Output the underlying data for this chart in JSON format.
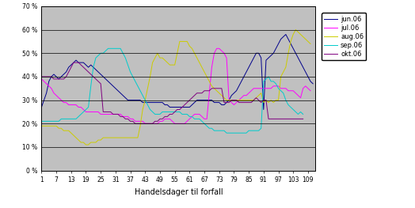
{
  "title": "",
  "xlabel": "Handelsdager til forfall",
  "ylabel": "",
  "xlim": [
    1,
    112
  ],
  "ylim": [
    0,
    70
  ],
  "xticks": [
    1,
    7,
    13,
    19,
    25,
    31,
    37,
    43,
    49,
    55,
    61,
    67,
    73,
    79,
    85,
    91,
    97,
    103,
    109
  ],
  "yticks": [
    0,
    10,
    20,
    30,
    40,
    50,
    60,
    70
  ],
  "fig_bg_color": "#ffffff",
  "plot_bg_color": "#c0c0c0",
  "legend_labels": [
    "jun.06",
    "jul.06",
    "aug.06",
    "sep.06",
    "okt.06"
  ],
  "line_colors": [
    "#00008B",
    "#FF00FF",
    "#CCCC00",
    "#00CCCC",
    "#800080"
  ],
  "jun06": [
    27,
    30,
    33,
    38,
    40,
    41,
    40,
    39,
    40,
    41,
    42,
    44,
    45,
    46,
    47,
    46,
    46,
    46,
    45,
    44,
    45,
    44,
    43,
    42,
    41,
    40,
    39,
    38,
    37,
    36,
    35,
    34,
    33,
    32,
    31,
    30,
    30,
    30,
    30,
    30,
    30,
    29,
    29,
    29,
    29,
    29,
    29,
    29,
    29,
    29,
    28,
    28,
    27,
    27,
    27,
    27,
    27,
    27,
    27,
    27,
    27,
    28,
    29,
    30,
    30,
    30,
    30,
    30,
    30,
    30,
    29,
    29,
    29,
    28,
    28,
    29,
    30,
    32,
    33,
    34,
    36,
    38,
    40,
    42,
    44,
    46,
    48,
    50,
    50,
    48,
    26,
    47,
    48,
    49,
    50,
    52,
    54,
    56,
    57,
    58,
    56,
    54,
    52,
    50,
    48,
    46,
    44,
    42,
    40,
    38,
    37
  ],
  "jul06": [
    39,
    38,
    37,
    36,
    35,
    33,
    32,
    31,
    30,
    29,
    29,
    28,
    28,
    28,
    28,
    27,
    27,
    26,
    25,
    25,
    25,
    25,
    25,
    25,
    24,
    24,
    24,
    24,
    24,
    24,
    24,
    24,
    24,
    23,
    23,
    23,
    22,
    22,
    21,
    21,
    21,
    21,
    20,
    20,
    20,
    20,
    20,
    20,
    21,
    21,
    22,
    22,
    22,
    21,
    20,
    20,
    20,
    20,
    20,
    21,
    22,
    23,
    24,
    24,
    24,
    23,
    22,
    22,
    33,
    44,
    50,
    52,
    52,
    51,
    50,
    48,
    30,
    29,
    28,
    29,
    30,
    31,
    32,
    32,
    33,
    34,
    35,
    35,
    35,
    35,
    35,
    35,
    35,
    35,
    36,
    36,
    36,
    35,
    35,
    35,
    34,
    34,
    34,
    33,
    32,
    31,
    35,
    36,
    35,
    34
  ],
  "aug06": [
    19,
    19,
    19,
    19,
    19,
    19,
    19,
    18,
    18,
    17,
    17,
    17,
    16,
    15,
    14,
    13,
    12,
    12,
    11,
    11,
    12,
    12,
    12,
    13,
    13,
    14,
    14,
    14,
    14,
    14,
    14,
    14,
    14,
    14,
    14,
    14,
    14,
    14,
    14,
    14,
    19,
    26,
    30,
    35,
    40,
    46,
    48,
    50,
    48,
    48,
    47,
    46,
    45,
    45,
    45,
    50,
    55,
    55,
    55,
    55,
    53,
    52,
    50,
    48,
    46,
    44,
    42,
    40,
    38,
    36,
    35,
    34,
    33,
    32,
    31,
    30,
    30,
    30,
    30,
    30,
    30,
    30,
    30,
    30,
    30,
    30,
    30,
    31,
    32,
    33,
    29,
    30,
    29,
    30,
    29,
    30,
    30,
    40,
    42,
    44,
    50,
    55,
    58,
    60,
    59,
    58,
    57,
    56,
    55,
    54
  ],
  "sep06": [
    21,
    21,
    21,
    21,
    21,
    21,
    21,
    21,
    22,
    22,
    22,
    22,
    22,
    22,
    22,
    23,
    24,
    25,
    26,
    27,
    36,
    44,
    48,
    49,
    50,
    50,
    51,
    52,
    52,
    52,
    52,
    52,
    52,
    50,
    48,
    45,
    42,
    40,
    38,
    36,
    34,
    32,
    30,
    28,
    26,
    25,
    24,
    24,
    24,
    25,
    25,
    25,
    25,
    25,
    25,
    25,
    25,
    24,
    24,
    24,
    23,
    23,
    22,
    22,
    22,
    21,
    20,
    19,
    18,
    18,
    17,
    17,
    17,
    17,
    17,
    16,
    16,
    16,
    16,
    16,
    16,
    16,
    16,
    16,
    17,
    17,
    17,
    17,
    17,
    18,
    38,
    39,
    40,
    38,
    38,
    37,
    35,
    34,
    33,
    30,
    28,
    27,
    26,
    25,
    24,
    25,
    24
  ],
  "okt06": [
    40,
    40,
    40,
    40,
    40,
    39,
    39,
    39,
    39,
    39,
    40,
    42,
    44,
    46,
    46,
    46,
    45,
    44,
    43,
    42,
    41,
    40,
    39,
    38,
    37,
    25,
    25,
    25,
    25,
    24,
    24,
    24,
    23,
    23,
    22,
    22,
    21,
    21,
    20,
    20,
    20,
    20,
    20,
    20,
    20,
    20,
    21,
    21,
    22,
    22,
    23,
    23,
    24,
    24,
    25,
    26,
    26,
    27,
    28,
    29,
    30,
    31,
    32,
    33,
    33,
    33,
    34,
    34,
    34,
    35,
    35,
    35,
    35,
    35,
    29,
    29,
    29,
    30,
    30,
    30,
    29,
    29,
    29,
    29,
    29,
    29,
    30,
    31,
    30,
    29,
    30,
    30,
    22,
    22,
    22,
    22,
    22,
    22,
    22,
    22,
    22,
    22,
    22,
    22,
    22,
    22,
    22
  ]
}
